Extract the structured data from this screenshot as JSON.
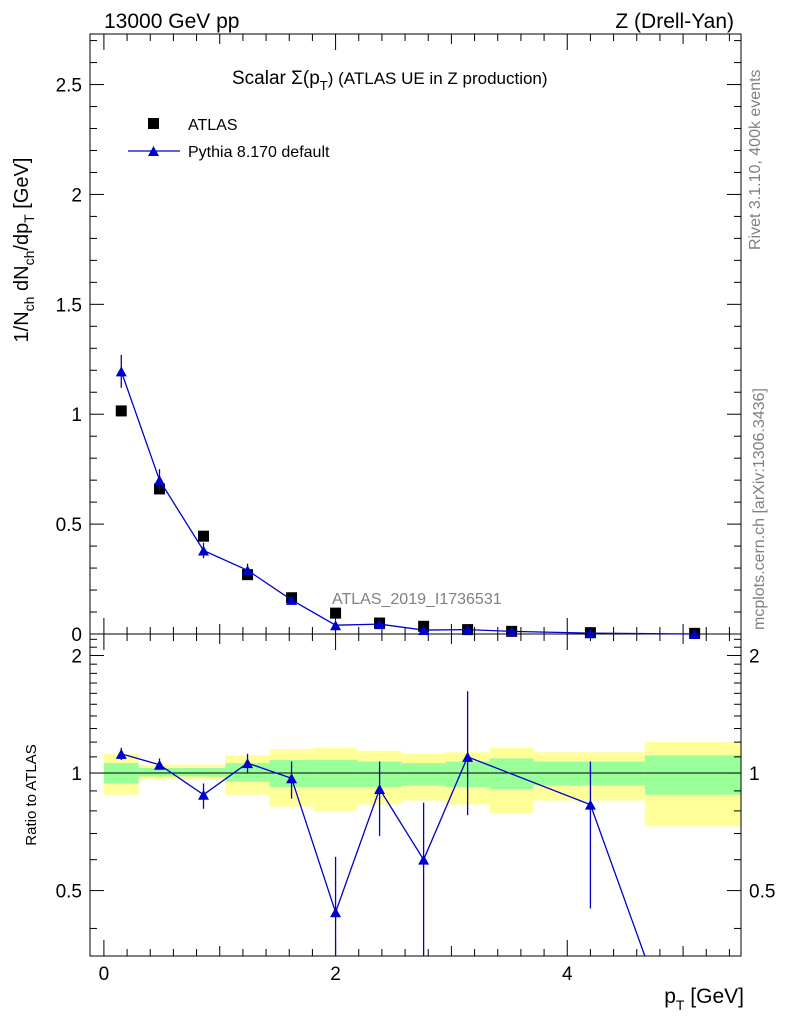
{
  "header": {
    "left": "13000 GeV pp",
    "right": "Z (Drell-Yan)"
  },
  "side_labels": {
    "rivet": "Rivet 3.1.10,  400k events",
    "mcplots": "mcplots.cern.ch [arXiv:1306.3436]"
  },
  "chart_data": [
    {
      "type": "scatter",
      "panel": "main",
      "title": "Scalar Σ(p_T) (ATLAS UE in Z production)",
      "title_parts": {
        "prefix": "Scalar Σ(p",
        "sub": "T",
        "suffix": ") (ATLAS UE in Z production)"
      },
      "watermark": "ATLAS_2019_I1736531",
      "ylabel": "1/N_ch dN_ch/dp_T [GeV]",
      "xlim": [
        -0.12,
        5.5
      ],
      "ylim": [
        0,
        2.73
      ],
      "yticks": [
        0,
        0.5,
        1,
        1.5,
        2,
        2.5
      ],
      "ytick_labels": [
        "0",
        "0.5",
        "1",
        "1.5",
        "2",
        "2.5"
      ],
      "legend": [
        {
          "label": "ATLAS",
          "marker": "square",
          "color": "#000000"
        },
        {
          "label": "Pythia 8.170 default",
          "marker": "triangle",
          "color": "#0000cc"
        }
      ],
      "series": [
        {
          "name": "ATLAS",
          "x": [
            0.15,
            0.48,
            0.86,
            1.24,
            1.62,
            2.0,
            2.38,
            2.76,
            3.14,
            3.52,
            4.2,
            5.1
          ],
          "y": [
            1.015,
            0.66,
            0.445,
            0.27,
            0.165,
            0.095,
            0.05,
            0.035,
            0.02,
            0.012,
            0.006,
            0.003
          ]
        },
        {
          "name": "Pythia 8.170 default",
          "x": [
            0.15,
            0.48,
            0.86,
            1.24,
            1.62,
            2.0,
            2.38,
            2.76,
            3.14,
            3.52,
            4.2,
            5.1
          ],
          "y": [
            1.195,
            0.7,
            0.38,
            0.29,
            0.155,
            0.04,
            0.045,
            0.018,
            0.02,
            0.012,
            0.004,
            0.0
          ],
          "err": [
            0.075,
            0.05,
            0.035,
            0.03,
            0.015,
            0.01,
            0.01,
            0.005,
            0.005,
            0.003,
            0.002,
            0.0
          ]
        }
      ]
    },
    {
      "type": "line",
      "panel": "ratio",
      "ylabel": "Ratio to ATLAS",
      "xlabel": "p_T [GeV]",
      "xlabel_parts": {
        "prefix": "p",
        "sub": "T",
        "suffix": " [GeV]"
      },
      "xlim": [
        -0.12,
        5.5
      ],
      "ylim": [
        0.34,
        2.27
      ],
      "xticks": [
        0,
        2,
        4
      ],
      "xtick_labels": [
        "0",
        "2",
        "4"
      ],
      "yticks": [
        0.5,
        1,
        2
      ],
      "ytick_labels": [
        "0.5",
        "1",
        "2"
      ],
      "reference": 1,
      "bands": [
        {
          "x0": 0.0,
          "x1": 0.3,
          "stat": [
            0.94,
            1.06
          ],
          "total": [
            0.88,
            1.12
          ]
        },
        {
          "x0": 0.3,
          "x1": 0.67,
          "stat": [
            0.98,
            1.03
          ],
          "total": [
            0.96,
            1.05
          ]
        },
        {
          "x0": 0.67,
          "x1": 1.05,
          "stat": [
            0.98,
            1.03
          ],
          "total": [
            0.96,
            1.05
          ]
        },
        {
          "x0": 1.05,
          "x1": 1.43,
          "stat": [
            0.95,
            1.06
          ],
          "total": [
            0.88,
            1.11
          ]
        },
        {
          "x0": 1.43,
          "x1": 1.81,
          "stat": [
            0.92,
            1.08
          ],
          "total": [
            0.82,
            1.15
          ]
        },
        {
          "x0": 1.81,
          "x1": 2.19,
          "stat": [
            0.92,
            1.08
          ],
          "total": [
            0.8,
            1.16
          ]
        },
        {
          "x0": 2.19,
          "x1": 2.57,
          "stat": [
            0.92,
            1.07
          ],
          "total": [
            0.83,
            1.14
          ]
        },
        {
          "x0": 2.57,
          "x1": 2.95,
          "stat": [
            0.93,
            1.06
          ],
          "total": [
            0.85,
            1.12
          ]
        },
        {
          "x0": 2.95,
          "x1": 3.33,
          "stat": [
            0.92,
            1.07
          ],
          "total": [
            0.83,
            1.13
          ]
        },
        {
          "x0": 3.33,
          "x1": 3.71,
          "stat": [
            0.91,
            1.09
          ],
          "total": [
            0.79,
            1.16
          ]
        },
        {
          "x0": 3.71,
          "x1": 4.67,
          "stat": [
            0.93,
            1.07
          ],
          "total": [
            0.85,
            1.13
          ]
        },
        {
          "x0": 4.67,
          "x1": 5.5,
          "stat": [
            0.88,
            1.11
          ],
          "total": [
            0.73,
            1.2
          ]
        }
      ],
      "series": [
        {
          "name": "Pythia 8.170 default",
          "x": [
            0.15,
            0.48,
            0.86,
            1.24,
            1.62,
            2.0,
            2.38,
            2.76,
            3.14,
            4.2,
            4.67
          ],
          "y": [
            1.12,
            1.05,
            0.88,
            1.06,
            0.97,
            0.44,
            0.91,
            0.6,
            1.1,
            0.83,
            0.34
          ],
          "err_low": [
            0.04,
            0.03,
            0.07,
            0.06,
            0.11,
            0.17,
            0.22,
            0.45,
            0.32,
            0.38,
            0.0
          ],
          "err_high": [
            0.04,
            0.04,
            0.06,
            0.06,
            0.1,
            0.17,
            0.16,
            0.24,
            0.52,
            0.24,
            0.0
          ]
        }
      ]
    }
  ]
}
